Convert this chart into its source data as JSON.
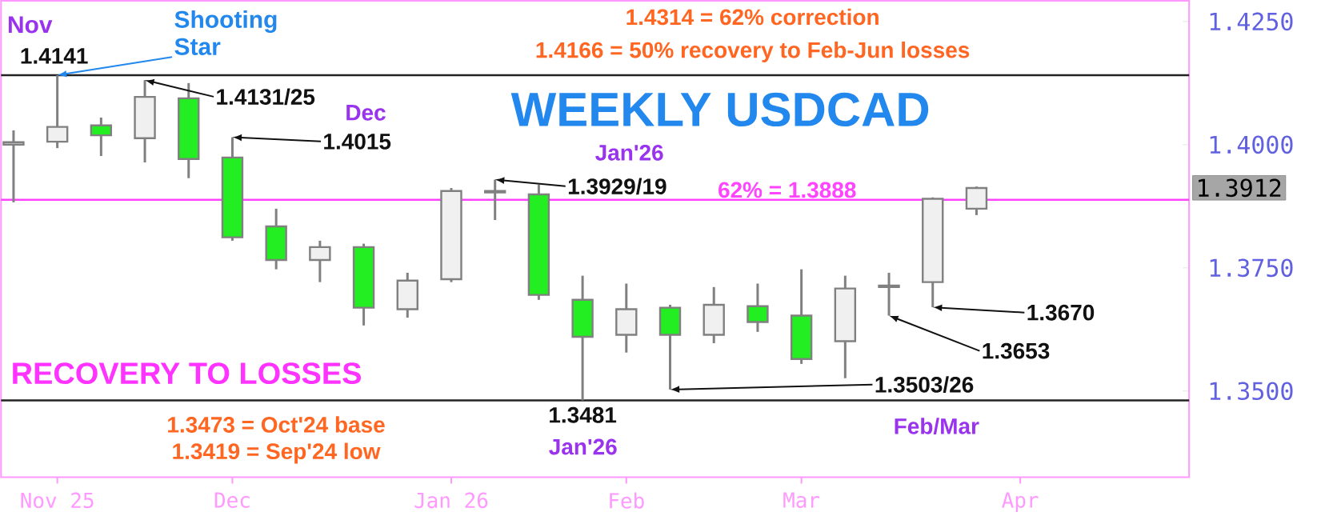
{
  "chart_data": {
    "type": "candlestick",
    "title": "WEEKLY USDCAD",
    "x": [
      "2025-10-27",
      "2025-11-03",
      "2025-11-10",
      "2025-11-17",
      "2025-11-24",
      "2025-12-01",
      "2025-12-08",
      "2025-12-15",
      "2025-12-22",
      "2025-12-29",
      "2026-01-05",
      "2026-01-12",
      "2026-01-19",
      "2026-01-26",
      "2026-02-02",
      "2026-02-09",
      "2026-02-16",
      "2026-02-23",
      "2026-03-02",
      "2026-03-09",
      "2026-03-16",
      "2026-03-23",
      "2026-03-30"
    ],
    "ohlc": [
      [
        1.4,
        1.4029,
        1.3883,
        1.4005
      ],
      [
        1.4006,
        1.4141,
        1.3993,
        1.4036
      ],
      [
        1.4039,
        1.4055,
        1.3977,
        1.4019
      ],
      [
        1.4013,
        1.4131,
        1.3964,
        1.4097
      ],
      [
        1.4094,
        1.4125,
        1.3932,
        1.3971
      ],
      [
        1.3974,
        1.4015,
        1.3805,
        1.3812
      ],
      [
        1.3834,
        1.387,
        1.3747,
        1.3766
      ],
      [
        1.3766,
        1.3805,
        1.3721,
        1.3792
      ],
      [
        1.3792,
        1.3799,
        1.3633,
        1.3669
      ],
      [
        1.3666,
        1.374,
        1.3649,
        1.3724
      ],
      [
        1.3727,
        1.3912,
        1.3721,
        1.3906
      ],
      [
        1.3903,
        1.3929,
        1.3847,
        1.3906
      ],
      [
        1.3899,
        1.3919,
        1.3685,
        1.3695
      ],
      [
        1.3685,
        1.3734,
        1.3481,
        1.361
      ],
      [
        1.3614,
        1.3718,
        1.3578,
        1.3666
      ],
      [
        1.3669,
        1.3675,
        1.3503,
        1.3614
      ],
      [
        1.3614,
        1.3711,
        1.3597,
        1.3675
      ],
      [
        1.3672,
        1.3718,
        1.362,
        1.364
      ],
      [
        1.3653,
        1.3747,
        1.3555,
        1.3565
      ],
      [
        1.3601,
        1.3734,
        1.3526,
        1.3708
      ],
      [
        1.3711,
        1.374,
        1.3653,
        1.3714
      ],
      [
        1.3721,
        1.3893,
        1.367,
        1.389
      ],
      [
        1.387,
        1.3915,
        1.3857,
        1.3912
      ]
    ],
    "colors": [
      "#f0f0f0",
      "#f0f0f0",
      "#22ee22",
      "#f0f0f0",
      "#22ee22",
      "#22ee22",
      "#22ee22",
      "#f0f0f0",
      "#22ee22",
      "#f0f0f0",
      "#f0f0f0",
      "#f0f0f0",
      "#22ee22",
      "#22ee22",
      "#f0f0f0",
      "#22ee22",
      "#f0f0f0",
      "#22ee22",
      "#22ee22",
      "#f0f0f0",
      "#f0f0f0",
      "#f0f0f0",
      "#f0f0f0"
    ],
    "xlim": [
      "2025-10-25",
      "2026-05-03"
    ],
    "xticks": [
      {
        "value": "2025-11-03",
        "label": "Nov 25"
      },
      {
        "value": "2025-12-01",
        "label": "Dec"
      },
      {
        "value": "2026-01-05",
        "label": "Jan 26"
      },
      {
        "value": "2026-02-02",
        "label": "Feb"
      },
      {
        "value": "2026-03-02",
        "label": "Mar"
      },
      {
        "value": "2026-04-06",
        "label": "Apr"
      }
    ],
    "ylim": [
      1.3325,
      1.4292
    ],
    "yticks": [
      {
        "value": 1.35,
        "label": "1.3500"
      },
      {
        "value": 1.375,
        "label": "1.3750"
      },
      {
        "value": 1.4,
        "label": "1.4000"
      },
      {
        "value": 1.425,
        "label": "1.4250"
      }
    ],
    "ref_lines": [
      {
        "axis": "y",
        "value": 1.4141,
        "color": "#222222"
      },
      {
        "axis": "y",
        "value": 1.3481,
        "color": "#222222"
      },
      {
        "axis": "y",
        "value": 1.3888,
        "label": "62% = 1.3888",
        "color": "#ff44ff"
      }
    ],
    "annotations": [
      "1.4314 = 62% correction",
      "1.4166 = 50% recovery to Feb-Jun losses",
      "RECOVERY TO LOSSES",
      "1.3473 = Oct'24 base",
      "1.3419 = Sep'24 low",
      {
        "text": "Shooting Star",
        "x": "2025-11-03",
        "y": 1.4141
      },
      "Nov",
      {
        "text": "1.4141",
        "x": "2025-11-03",
        "y": 1.4141
      },
      {
        "text": "1.4131/25",
        "x": "2025-11-17",
        "y": 1.4131
      },
      "Dec",
      {
        "text": "1.4015",
        "x": "2025-12-01",
        "y": 1.4015
      },
      "Jan'26",
      {
        "text": "1.3929/19",
        "x": "2026-01-12",
        "y": 1.3929
      },
      {
        "text": "1.3481",
        "x": "2026-01-26",
        "y": 1.3481
      },
      "Jan'26",
      {
        "text": "1.3503/26",
        "x": "2026-02-09",
        "y": 1.3503
      },
      {
        "text": "1.3653",
        "x": "2026-03-16",
        "y": 1.3653
      },
      {
        "text": "1.3670",
        "x": "2026-03-23",
        "y": 1.367
      },
      "Feb/Mar",
      "1.3912"
    ]
  }
}
